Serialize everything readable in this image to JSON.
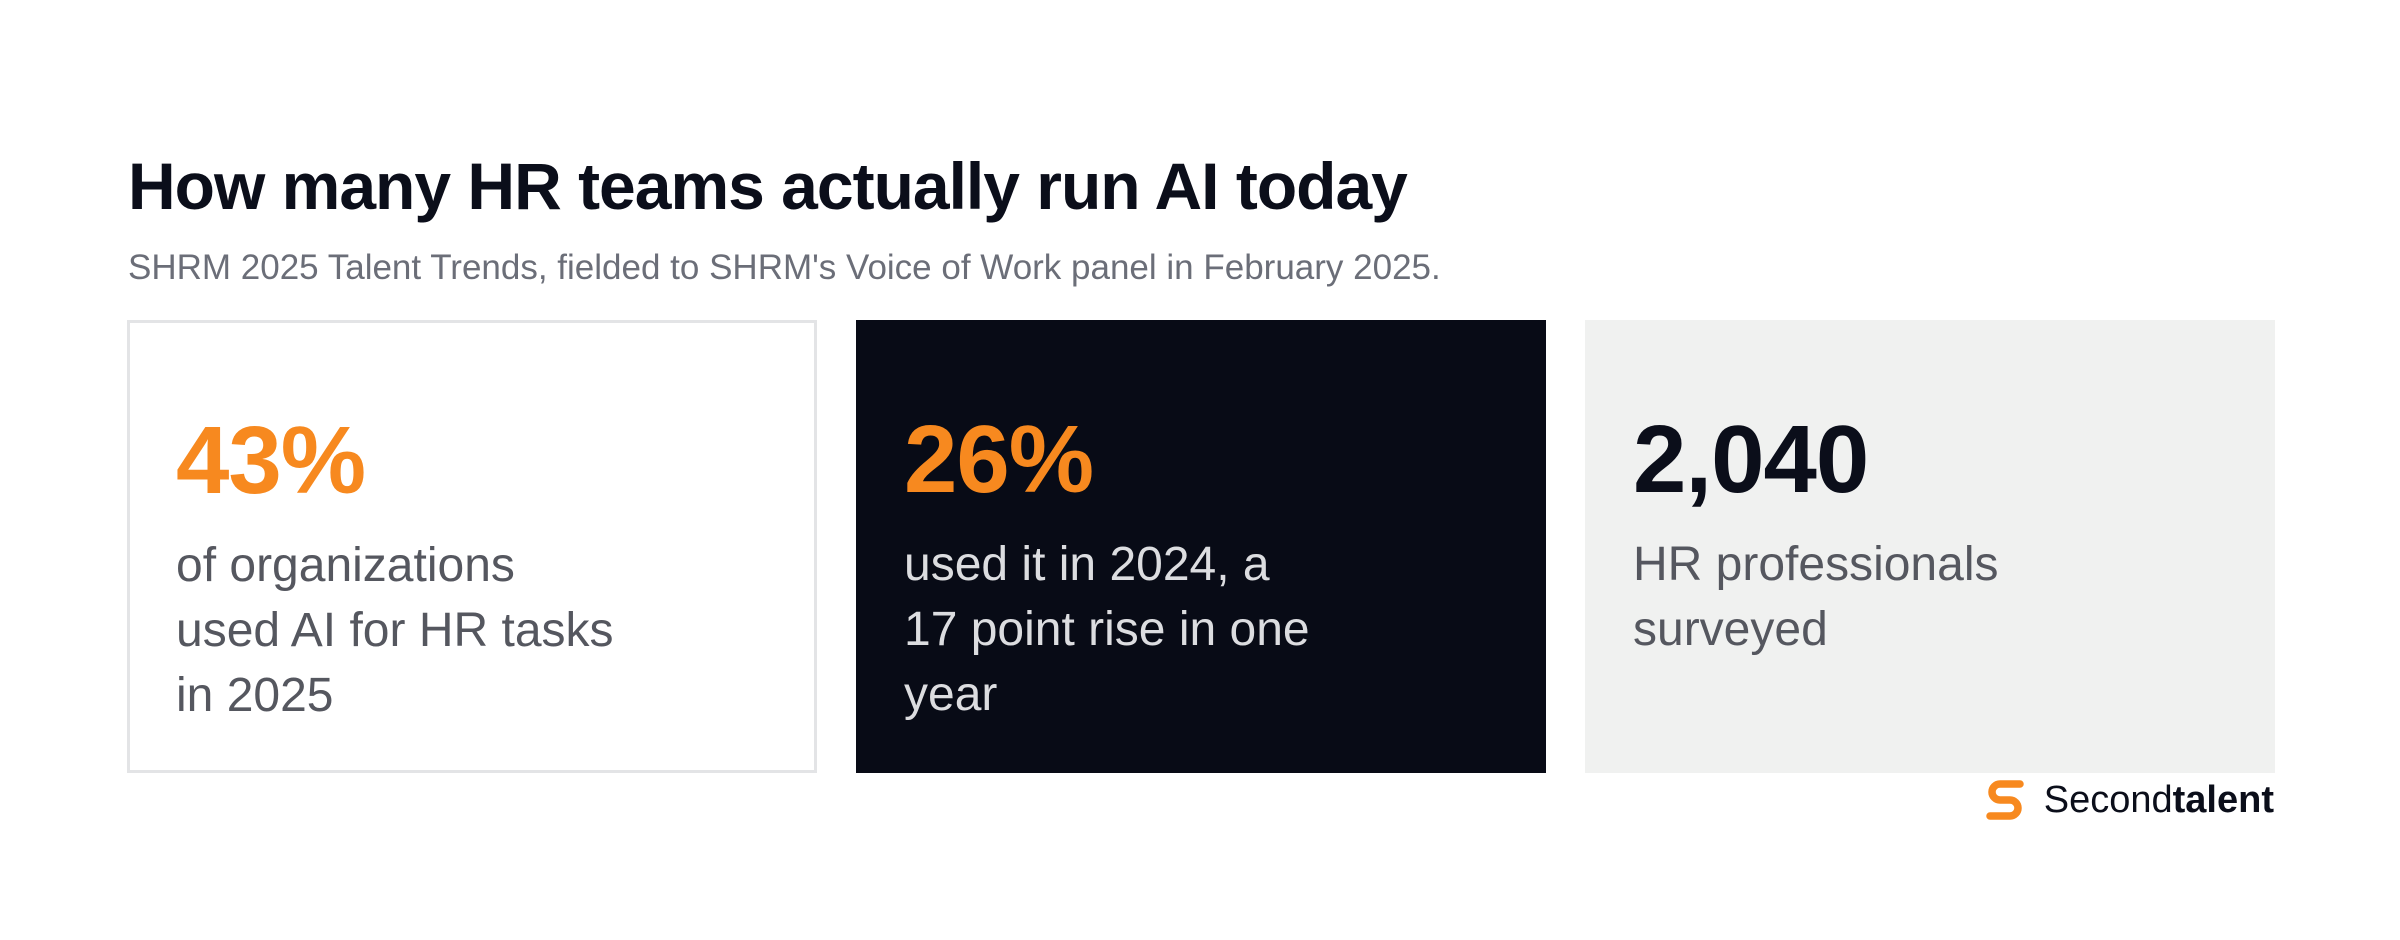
{
  "header": {
    "title": "How many HR teams actually run AI today",
    "subtitle": "SHRM 2025 Talent Trends, fielded to SHRM's Voice of Work panel in February 2025."
  },
  "cards": [
    {
      "value": "43%",
      "description": "of organizations\nused AI for HR tasks\nin 2025"
    },
    {
      "value": "26%",
      "description": "used it in 2024, a\n17 point rise in one\nyear"
    },
    {
      "value": "2,040",
      "description": "HR professionals\nsurveyed"
    }
  ],
  "brand": {
    "name_regular": "Second",
    "name_bold": "talent",
    "icon": "secondtalent-logo-icon",
    "color": "#f7891f"
  },
  "colors": {
    "accent": "#f7891f",
    "dark_card": "#080b16",
    "light_card": "#f0f1f0"
  }
}
